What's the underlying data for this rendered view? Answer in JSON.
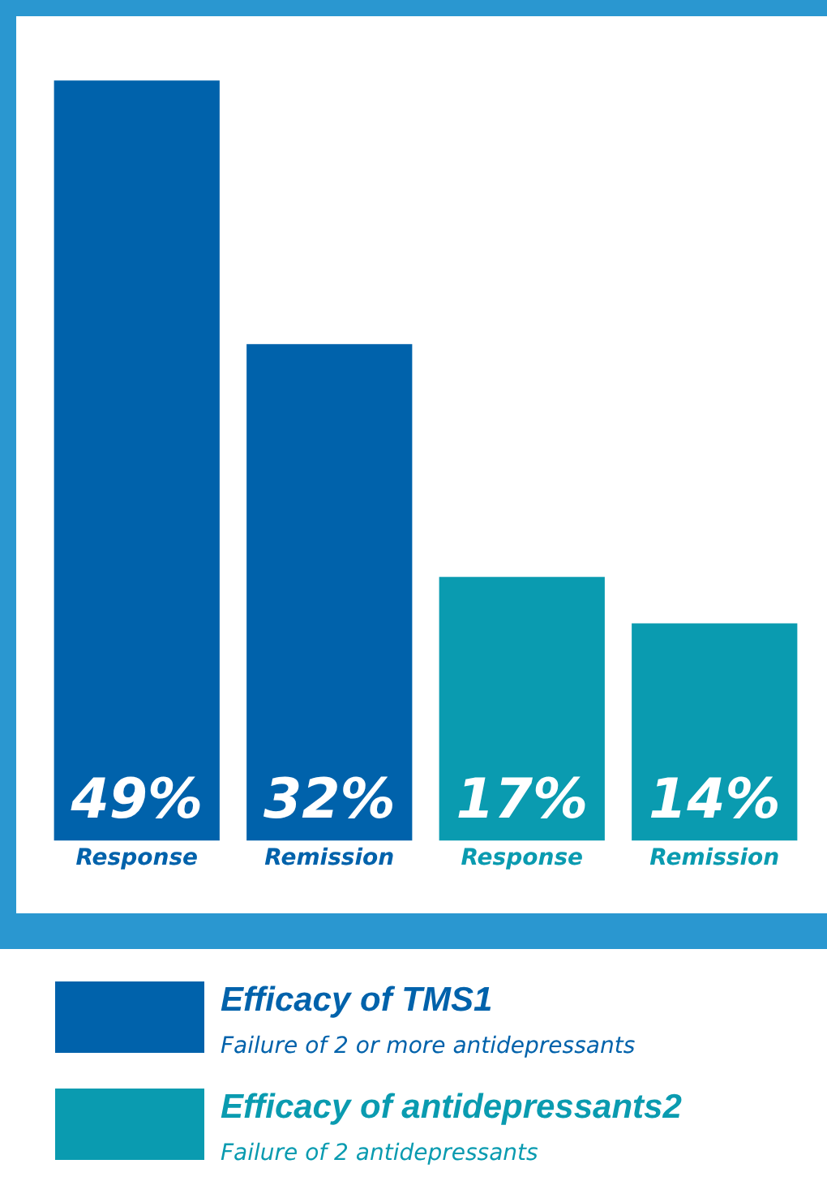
{
  "chart_data": {
    "type": "bar",
    "categories": [
      "Response",
      "Remission",
      "Response",
      "Remission"
    ],
    "series": [
      {
        "name": "Efficacy of TMS1",
        "color": "#0062ab",
        "values": [
          49,
          32,
          null,
          null
        ],
        "value_labels": [
          "49%",
          "32%",
          null,
          null
        ]
      },
      {
        "name": "Efficacy of antidepressants2",
        "color": "#0a9bb0",
        "values": [
          null,
          null,
          17,
          14
        ],
        "value_labels": [
          null,
          null,
          "17%",
          "14%"
        ]
      }
    ],
    "annotations": [
      "Failure of 2 or more antidepressants",
      "Failure of 2 antidepressants"
    ],
    "grid": false,
    "legend": "bottom"
  }
}
